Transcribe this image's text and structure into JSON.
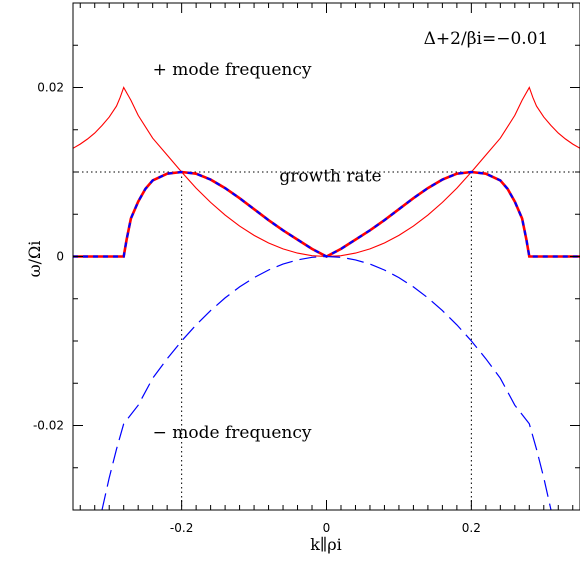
{
  "chart_data": {
    "type": "line",
    "title": "",
    "xlabel": "k∥ρi",
    "ylabel": "ω/Ωi",
    "xlim": [
      -0.35,
      0.35
    ],
    "ylim": [
      -0.03,
      0.03
    ],
    "x_ticks": [
      -0.2,
      0,
      0.2
    ],
    "x_tick_labels": [
      "-0.2",
      "0",
      "0.2"
    ],
    "y_ticks": [
      -0.02,
      0,
      0.02
    ],
    "y_tick_labels": [
      "-0.02",
      "0",
      "0.02"
    ],
    "grid": false,
    "legend": "none",
    "parameter_label": "Δ+2/βi=−0.01",
    "reference_lines": {
      "horizontal_y": 0.01,
      "vertical_x": [
        -0.2,
        0.2
      ]
    },
    "annotations": [
      {
        "text": "+ mode frequency",
        "x": -0.24,
        "y": 0.0215
      },
      {
        "text": "growth rate",
        "x": -0.065,
        "y": 0.0089
      },
      {
        "text": "− mode frequency",
        "x": -0.24,
        "y": -0.0215
      }
    ],
    "series": [
      {
        "id": "plus-mode-frequency",
        "color": "#ff0000",
        "style": "solid",
        "points": [
          [
            -0.35,
            0.0128
          ],
          [
            -0.34,
            0.0133
          ],
          [
            -0.33,
            0.0139
          ],
          [
            -0.32,
            0.0146
          ],
          [
            -0.31,
            0.0155
          ],
          [
            -0.3,
            0.0165
          ],
          [
            -0.29,
            0.0178
          ],
          [
            -0.285,
            0.0188
          ],
          [
            -0.28,
            0.02
          ],
          [
            -0.27,
            0.0185
          ],
          [
            -0.26,
            0.0167
          ],
          [
            -0.24,
            0.014
          ],
          [
            -0.22,
            0.012
          ],
          [
            -0.2,
            0.01
          ],
          [
            -0.18,
            0.0081
          ],
          [
            -0.16,
            0.0064
          ],
          [
            -0.14,
            0.0049
          ],
          [
            -0.12,
            0.0036
          ],
          [
            -0.1,
            0.0025
          ],
          [
            -0.08,
            0.0016
          ],
          [
            -0.06,
            0.0009
          ],
          [
            -0.04,
            0.0004
          ],
          [
            -0.02,
            0.0001
          ],
          [
            0,
            0
          ],
          [
            0.02,
            0.0001
          ],
          [
            0.04,
            0.0004
          ],
          [
            0.06,
            0.0009
          ],
          [
            0.08,
            0.0016
          ],
          [
            0.1,
            0.0025
          ],
          [
            0.12,
            0.0036
          ],
          [
            0.14,
            0.0049
          ],
          [
            0.16,
            0.0064
          ],
          [
            0.18,
            0.0081
          ],
          [
            0.2,
            0.01
          ],
          [
            0.22,
            0.012
          ],
          [
            0.24,
            0.014
          ],
          [
            0.26,
            0.0167
          ],
          [
            0.27,
            0.0185
          ],
          [
            0.28,
            0.02
          ],
          [
            0.285,
            0.0188
          ],
          [
            0.29,
            0.0178
          ],
          [
            0.3,
            0.0165
          ],
          [
            0.31,
            0.0155
          ],
          [
            0.32,
            0.0146
          ],
          [
            0.33,
            0.0139
          ],
          [
            0.34,
            0.0133
          ],
          [
            0.35,
            0.0128
          ]
        ]
      },
      {
        "id": "growth-rate-red",
        "color": "#ff0000",
        "style": "solid",
        "points": [
          [
            -0.35,
            0
          ],
          [
            -0.28,
            0
          ],
          [
            -0.276,
            0.002
          ],
          [
            -0.27,
            0.0045
          ],
          [
            -0.26,
            0.0065
          ],
          [
            -0.25,
            0.008
          ],
          [
            -0.24,
            0.009
          ],
          [
            -0.22,
            0.0098
          ],
          [
            -0.2,
            0.01
          ],
          [
            -0.18,
            0.0098
          ],
          [
            -0.16,
            0.0091
          ],
          [
            -0.14,
            0.0081
          ],
          [
            -0.12,
            0.0069
          ],
          [
            -0.1,
            0.0056
          ],
          [
            -0.08,
            0.0043
          ],
          [
            -0.06,
            0.0031
          ],
          [
            -0.04,
            0.002
          ],
          [
            -0.02,
            0.0009
          ],
          [
            0,
            0
          ],
          [
            0.02,
            0.0009
          ],
          [
            0.04,
            0.002
          ],
          [
            0.06,
            0.0031
          ],
          [
            0.08,
            0.0043
          ],
          [
            0.1,
            0.0056
          ],
          [
            0.12,
            0.0069
          ],
          [
            0.14,
            0.0081
          ],
          [
            0.16,
            0.0091
          ],
          [
            0.18,
            0.0098
          ],
          [
            0.2,
            0.01
          ],
          [
            0.22,
            0.0098
          ],
          [
            0.24,
            0.009
          ],
          [
            0.25,
            0.008
          ],
          [
            0.26,
            0.0065
          ],
          [
            0.27,
            0.0045
          ],
          [
            0.276,
            0.002
          ],
          [
            0.28,
            0
          ],
          [
            0.35,
            0
          ]
        ]
      },
      {
        "id": "growth-rate-blue",
        "color": "#0000ff",
        "style": "dashed",
        "points": [
          [
            -0.35,
            0
          ],
          [
            -0.28,
            0
          ],
          [
            -0.276,
            0.002
          ],
          [
            -0.27,
            0.0045
          ],
          [
            -0.26,
            0.0065
          ],
          [
            -0.25,
            0.008
          ],
          [
            -0.24,
            0.009
          ],
          [
            -0.22,
            0.0098
          ],
          [
            -0.2,
            0.01
          ],
          [
            -0.18,
            0.0098
          ],
          [
            -0.16,
            0.0091
          ],
          [
            -0.14,
            0.0081
          ],
          [
            -0.12,
            0.0069
          ],
          [
            -0.1,
            0.0056
          ],
          [
            -0.08,
            0.0043
          ],
          [
            -0.06,
            0.0031
          ],
          [
            -0.04,
            0.002
          ],
          [
            -0.02,
            0.0009
          ],
          [
            0,
            0
          ],
          [
            0.02,
            0.0009
          ],
          [
            0.04,
            0.002
          ],
          [
            0.06,
            0.0031
          ],
          [
            0.08,
            0.0043
          ],
          [
            0.1,
            0.0056
          ],
          [
            0.12,
            0.0069
          ],
          [
            0.14,
            0.0081
          ],
          [
            0.16,
            0.0091
          ],
          [
            0.18,
            0.0098
          ],
          [
            0.2,
            0.01
          ],
          [
            0.22,
            0.0098
          ],
          [
            0.24,
            0.009
          ],
          [
            0.25,
            0.008
          ],
          [
            0.26,
            0.0065
          ],
          [
            0.27,
            0.0045
          ],
          [
            0.276,
            0.002
          ],
          [
            0.28,
            0
          ],
          [
            0.35,
            0
          ]
        ]
      },
      {
        "id": "minus-mode-frequency",
        "color": "#0000ff",
        "style": "dashed",
        "points": [
          [
            -0.31,
            -0.03
          ],
          [
            -0.3,
            -0.0262
          ],
          [
            -0.29,
            -0.0228
          ],
          [
            -0.28,
            -0.0198
          ],
          [
            -0.26,
            -0.0176
          ],
          [
            -0.24,
            -0.0144
          ],
          [
            -0.22,
            -0.0121
          ],
          [
            -0.2,
            -0.01
          ],
          [
            -0.18,
            -0.0081
          ],
          [
            -0.16,
            -0.0064
          ],
          [
            -0.14,
            -0.0049
          ],
          [
            -0.12,
            -0.0036
          ],
          [
            -0.1,
            -0.0025
          ],
          [
            -0.08,
            -0.0016
          ],
          [
            -0.06,
            -0.0009
          ],
          [
            -0.04,
            -0.0004
          ],
          [
            -0.02,
            -0.0001
          ],
          [
            0,
            0
          ],
          [
            0.02,
            -0.0001
          ],
          [
            0.04,
            -0.0004
          ],
          [
            0.06,
            -0.0009
          ],
          [
            0.08,
            -0.0016
          ],
          [
            0.1,
            -0.0025
          ],
          [
            0.12,
            -0.0036
          ],
          [
            0.14,
            -0.0049
          ],
          [
            0.16,
            -0.0064
          ],
          [
            0.18,
            -0.0081
          ],
          [
            0.2,
            -0.01
          ],
          [
            0.22,
            -0.0121
          ],
          [
            0.24,
            -0.0144
          ],
          [
            0.26,
            -0.0176
          ],
          [
            0.28,
            -0.0198
          ],
          [
            0.29,
            -0.0228
          ],
          [
            0.3,
            -0.0262
          ],
          [
            0.31,
            -0.03
          ]
        ]
      }
    ]
  }
}
